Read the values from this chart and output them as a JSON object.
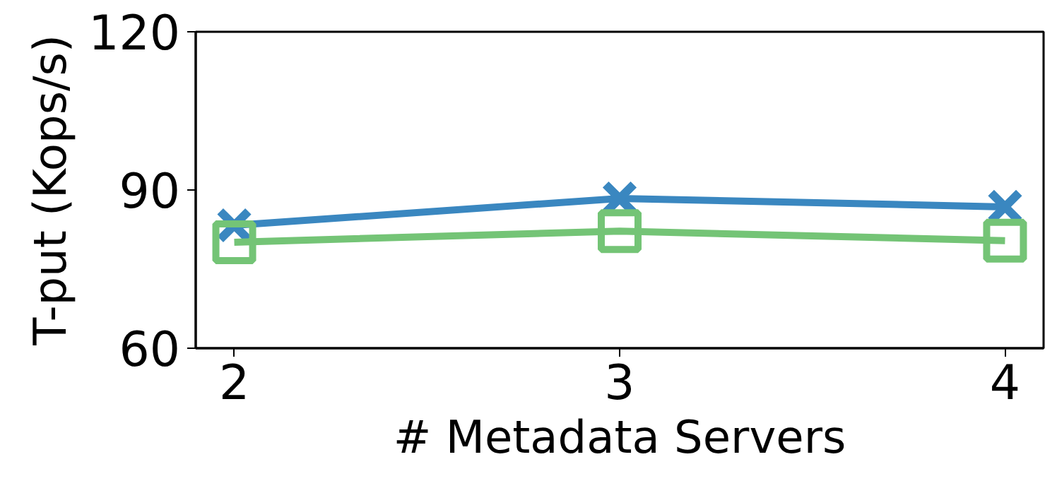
{
  "chart_data": {
    "type": "line",
    "xlabel": "# Metadata Servers",
    "ylabel": "T-put (Kops/s)",
    "x": [
      2,
      3,
      4
    ],
    "series": [
      {
        "color": "#3a87c0",
        "values": [
          83.3,
          88.4,
          86.8
        ],
        "marker": "cross"
      },
      {
        "color": "#74c476",
        "values": [
          80.1,
          82.2,
          80.4
        ],
        "marker": "square"
      }
    ],
    "xlim": [
      1.9,
      4.1
    ],
    "xticks": [
      2,
      3,
      4
    ],
    "ylim": [
      60,
      120
    ],
    "yticks": [
      60,
      90,
      120
    ],
    "grid": false,
    "line_style": "solid"
  }
}
